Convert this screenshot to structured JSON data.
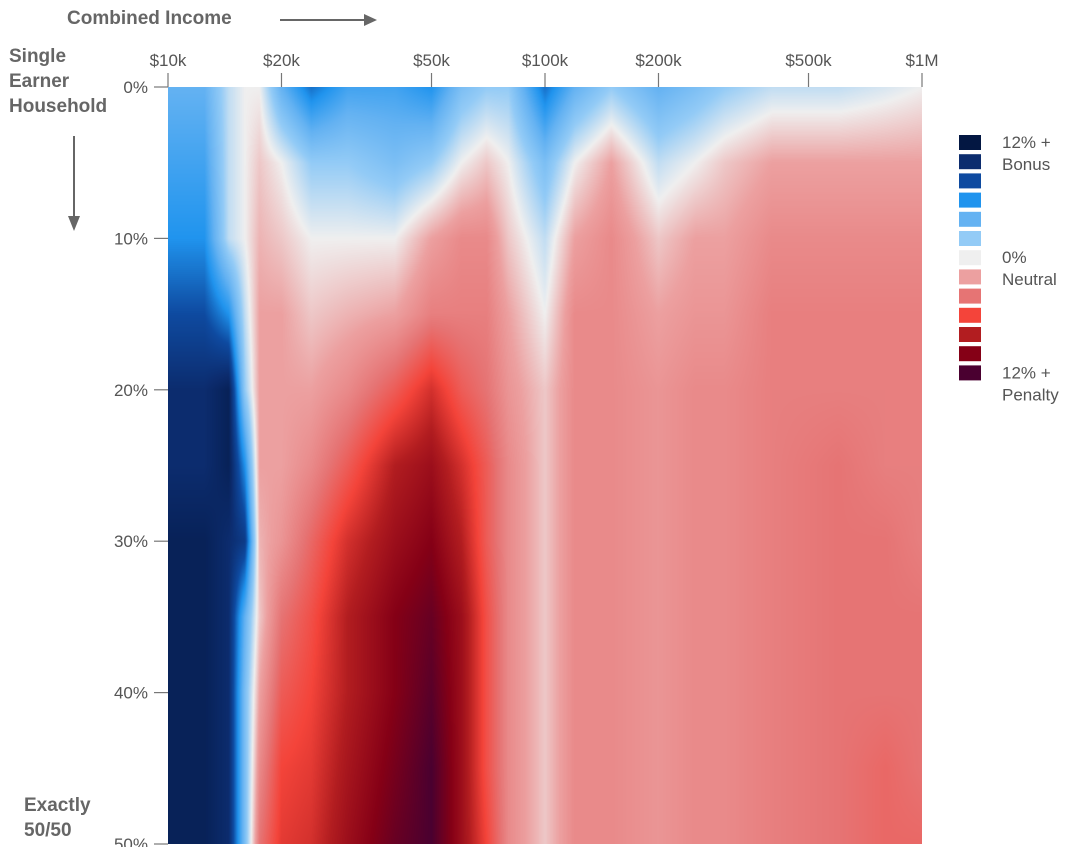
{
  "chart_data": {
    "type": "heatmap",
    "title": "",
    "xlabel": "Combined Income",
    "ylabel": "Single Earner Household",
    "ylabel_bottom": "Exactly 50/50",
    "x_scale": "log",
    "x_range": [
      10000,
      1000000
    ],
    "y_range": [
      0,
      50
    ],
    "x_ticks": [
      {
        "value": 10000,
        "label": "$10k"
      },
      {
        "value": 20000,
        "label": "$20k"
      },
      {
        "value": 50000,
        "label": "$50k"
      },
      {
        "value": 100000,
        "label": "$100k"
      },
      {
        "value": 200000,
        "label": "$200k"
      },
      {
        "value": 500000,
        "label": "$500k"
      },
      {
        "value": 1000000,
        "label": "$1M"
      }
    ],
    "y_ticks": [
      {
        "value": 0,
        "label": "0%"
      },
      {
        "value": 10,
        "label": "10%"
      },
      {
        "value": 20,
        "label": "20%"
      },
      {
        "value": 30,
        "label": "30%"
      },
      {
        "value": 40,
        "label": "40%"
      },
      {
        "value": 50,
        "label": "50%"
      }
    ],
    "value_unit": "percent of income (negative = bonus, positive = penalty)",
    "income_columns": [
      10000,
      12500,
      14500,
      16000,
      17500,
      20000,
      24000,
      30000,
      40000,
      50000,
      60000,
      70000,
      80000,
      100000,
      120000,
      150000,
      200000,
      250000,
      300000,
      400000,
      600000,
      800000,
      1000000
    ],
    "split_rows": [
      0,
      5,
      10,
      15,
      20,
      25,
      30,
      35,
      40,
      45,
      50
    ],
    "values": [
      [
        -4,
        -4,
        -1,
        0,
        0,
        -4,
        -7,
        -5,
        -5,
        -6,
        -3,
        -2,
        -2,
        -7,
        -4,
        -2,
        -4,
        -3,
        -2,
        -1,
        -1,
        -0.5,
        0
      ],
      [
        -5,
        -5,
        -1,
        0,
        1,
        0,
        -2,
        -2,
        -3,
        -2,
        0,
        1,
        0,
        -3,
        0,
        2,
        -1,
        0,
        1,
        2,
        2,
        2,
        2
      ],
      [
        -6,
        -6,
        -1,
        0,
        1.5,
        1,
        0,
        0,
        0,
        2,
        3,
        3,
        1,
        -1,
        2,
        3,
        1,
        2,
        2,
        3,
        3,
        3,
        3
      ],
      [
        -8,
        -8,
        -6,
        -1,
        2,
        2,
        1,
        1.5,
        2,
        3.5,
        3.5,
        3.5,
        2,
        0,
        3,
        3,
        2,
        2.5,
        2.5,
        3.5,
        3.5,
        3.5,
        3.5
      ],
      [
        -10,
        -10,
        -11,
        -2,
        2,
        2,
        2,
        3,
        5,
        7,
        5,
        4,
        2.5,
        1,
        3,
        3,
        2.5,
        3,
        3,
        3.5,
        3.5,
        3.5,
        3.5
      ],
      [
        -10,
        -10,
        -11,
        -6,
        2,
        2,
        3,
        5,
        8,
        9,
        7,
        5,
        3,
        1,
        3,
        3,
        2.5,
        3,
        3,
        3.5,
        4,
        3.5,
        3.5
      ],
      [
        -11,
        -11,
        -10,
        -9,
        1.5,
        2.5,
        4.5,
        7,
        9,
        10,
        8,
        5,
        3,
        1,
        3,
        3,
        2.5,
        3,
        3,
        3.5,
        4,
        4,
        3.5
      ],
      [
        -11,
        -11,
        -10,
        -4,
        1,
        4,
        5.5,
        8,
        10,
        11,
        9,
        5.5,
        3,
        1,
        3,
        3,
        2.5,
        3,
        3,
        3.5,
        4,
        4,
        4
      ],
      [
        -11,
        -11,
        -10,
        -3,
        2,
        5,
        6,
        8,
        10,
        11.5,
        9,
        5.5,
        3,
        1,
        3,
        3,
        2.5,
        3,
        3,
        3.5,
        4,
        4,
        4
      ],
      [
        -11,
        -11,
        -10,
        -3,
        3,
        6,
        6.5,
        8.5,
        10.5,
        12,
        9,
        5.5,
        3,
        1,
        3,
        3,
        2.5,
        3,
        3,
        3.5,
        4,
        4.5,
        4
      ],
      [
        -11,
        -11,
        -10,
        -3,
        4,
        6.5,
        7,
        9,
        11,
        12,
        9,
        6,
        3,
        1,
        3,
        3,
        2.5,
        3,
        3,
        3.5,
        4,
        4.5,
        4.5
      ]
    ],
    "legend": {
      "colors": [
        "#031742",
        "#0c2c6e",
        "#0e4aa0",
        "#2094ee",
        "#64b2f2",
        "#93cbf6",
        "#efefef",
        "#eca0a0",
        "#e67474",
        "#f4443a",
        "#b21d20",
        "#850016",
        "#4a0030"
      ],
      "labels": [
        {
          "index": 0,
          "line1": "12% +",
          "line2": "Bonus"
        },
        {
          "index": 6,
          "line1": "0%",
          "line2": "Neutral"
        },
        {
          "index": 12,
          "line1": "12% +",
          "line2": "Penalty"
        }
      ]
    }
  },
  "annotations": {
    "top_label": "Combined Income",
    "left_top": [
      "Single",
      "Earner",
      "Household"
    ],
    "left_bottom": [
      "Exactly",
      "50/50"
    ]
  }
}
